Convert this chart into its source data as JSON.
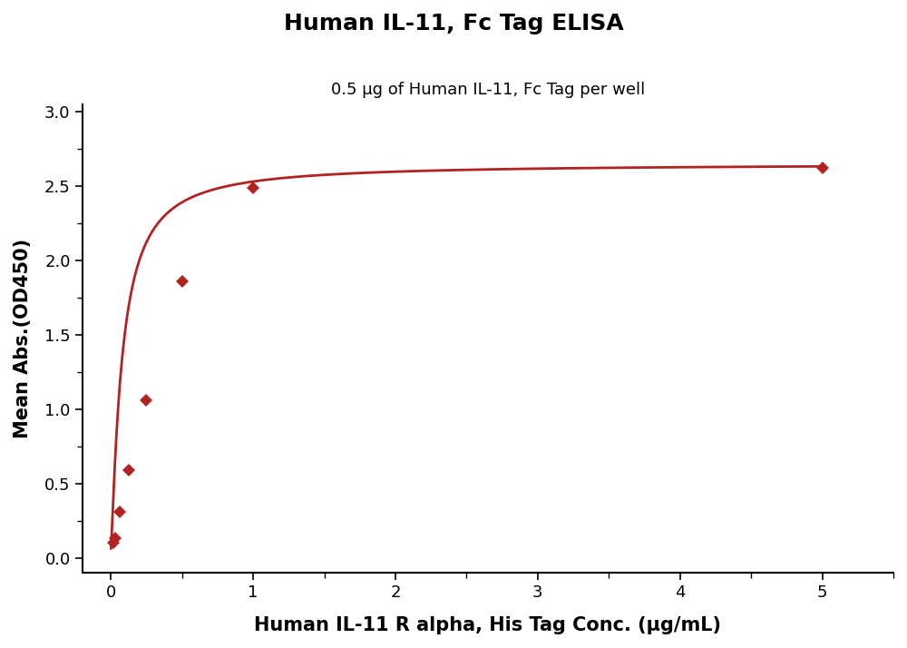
{
  "title": "Human IL-11, Fc Tag ELISA",
  "subtitle": "0.5 μg of Human IL-11, Fc Tag per well",
  "xlabel": "Human IL-11 R alpha, His Tag Conc. (μg/mL)",
  "ylabel": "Mean Abs.(OD450)",
  "title_fontsize": 18,
  "subtitle_fontsize": 13,
  "label_fontsize": 15,
  "tick_fontsize": 13,
  "line_color": "#B22222",
  "marker_color": "#B22222",
  "marker_style": "D",
  "marker_size": 7,
  "xlim": [
    -0.2,
    5.5
  ],
  "ylim": [
    -0.1,
    3.05
  ],
  "xticks": [
    0,
    1,
    2,
    3,
    4,
    5
  ],
  "yticks": [
    0.0,
    0.5,
    1.0,
    1.5,
    2.0,
    2.5,
    3.0
  ],
  "data_x": [
    0.016,
    0.031,
    0.063,
    0.125,
    0.25,
    0.5,
    1.0,
    5.0
  ],
  "data_y": [
    0.1,
    0.13,
    0.31,
    0.59,
    1.06,
    1.86,
    2.49,
    2.62
  ],
  "background_color": "#ffffff",
  "figwidth": 10.0,
  "figheight": 7.14
}
